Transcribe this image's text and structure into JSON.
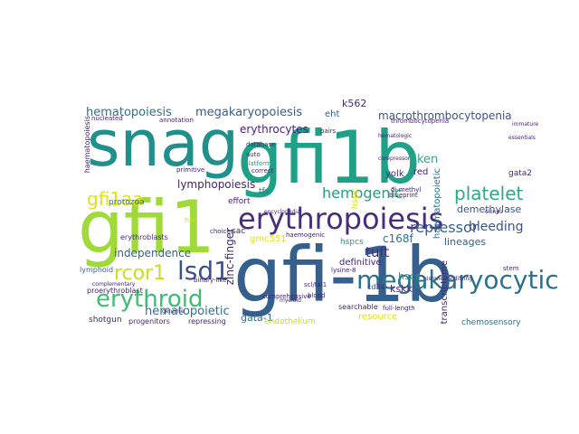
{
  "palette": {
    "dark_purple": "#46237a",
    "purple": "#472d7b",
    "blue_purple": "#3b528b",
    "steel_blue": "#355f8d",
    "blue": "#2c728e",
    "teal": "#21908d",
    "green_teal": "#1fa187",
    "sea_green": "#27ad81",
    "green": "#3dbc74",
    "light_green": "#5ec962",
    "lime": "#a0da39",
    "yellow_green": "#c8e020",
    "yellow": "#dde318"
  },
  "words": {
    "gfi1b_hyphen": "gfi-1b",
    "gfi1b": "gfi1b",
    "snag": "snag",
    "gfi1": "gfi1",
    "erythropoiesis": "erythropoiesis",
    "megakaryocytic": "megakaryocytic",
    "erythroid": "erythroid",
    "lsd1": "lsd1",
    "platelet": "platelet",
    "hemogenic": "hemogenic",
    "gfi1aa": "gfi1aa",
    "rcor1": "rcor1",
    "hematopoiesis": "hematopoiesis",
    "megakaryopoiesis": "megakaryopoiesis",
    "macrothrombocytopenia": "macrothrombocytopenia",
    "erythrocytes": "erythrocytes",
    "repressor": "repressor",
    "bleeding": "bleeding",
    "demethylase": "demethylase",
    "tuft": "tuft",
    "hematopoietic": "hematopoietic",
    "riken": "riken",
    "lymphopoiesis": "lymphopoiesis",
    "independence": "independence",
    "c168f": "c168f",
    "lineages": "lineages",
    "hscs": "hscs",
    "kskk": "kskk",
    "k562": "k562",
    "eht": "eht",
    "gata1": "gata-1",
    "gmc551": "gmc551",
    "definitive": "definitive",
    "resource": "resource",
    "chemosensory": "chemosensory",
    "endothelium": "endothelium",
    "erythroblasts": "erythroblasts",
    "protozoa": "protozoa",
    "proerythroblast": "proerythroblast",
    "shotgun": "shotgun",
    "progenitors": "progenitors",
    "repressing": "repressing",
    "lymphoid": "lymphoid",
    "hspcs": "hspcs",
    "yolk": "yolk",
    "red": "red",
    "searchable": "searchable",
    "full_length": "full-length",
    "cd34": "cd34",
    "tfs": "tfs",
    "effort": "effort",
    "primitive": "primitive",
    "auto": "auto",
    "database": "database",
    "annotation": "annotation",
    "nucleated": "nucleated",
    "hematologic": "hematologic",
    "thrombocytopenia": "thrombocytopenia",
    "zinc_finger": "zinc-finger",
    "haematopoietic": "haematopoietic",
    "hematopoiesis_v": "haematopoiesis",
    "hpc": "hspc",
    "transcriptome": "transcriptome",
    "gata2": "gata2",
    "platforms": "platforms",
    "choices": "choices",
    "comprehensive": "comprehensive",
    "sac": "sac",
    "hsc": "hsc",
    "blood": "blood",
    "lysine": "lysine-8",
    "histone": "histone-modifying",
    "corepressor": "corepressor",
    "di_methyl": "di-methyl",
    "stem": "stem",
    "binary_like": "binary-like",
    "complementary": "complementary",
    "genome": "genome",
    "blueprint": "blueprint",
    "correct": "correct",
    "pairs": "pairs",
    "immature": "immature",
    "essentials": "essentials",
    "clones": "clones",
    "haemogenic": "haemogenic",
    "myeloid": "myeloid",
    "sclital": "scl/tal1",
    "encyclopedia": "encyclopedia"
  }
}
